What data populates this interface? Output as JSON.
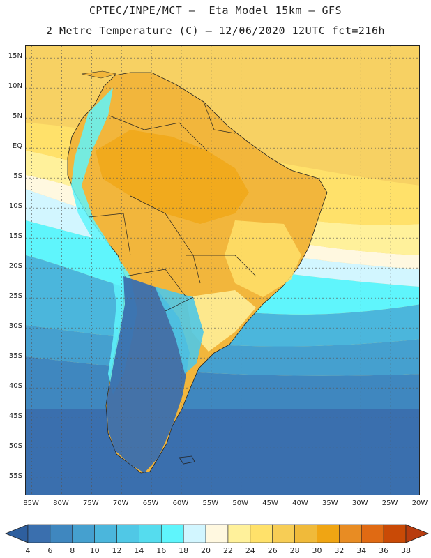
{
  "title_line1": "CPTEC/INPE/MCT –  Eta Model 15km – GFS",
  "title_line2": "2 Metre Temperature (C) – 12/06/2020 12UTC fct=216h",
  "map": {
    "region": "South America",
    "lon_range": [
      -86,
      -20
    ],
    "lat_range": [
      -58,
      17
    ],
    "lat_ticks": [
      "15N",
      "10N",
      "5N",
      "EQ",
      "5S",
      "10S",
      "15S",
      "20S",
      "25S",
      "30S",
      "35S",
      "40S",
      "45S",
      "50S",
      "55S"
    ],
    "lat_values": [
      15,
      10,
      5,
      0,
      -5,
      -10,
      -15,
      -20,
      -25,
      -30,
      -35,
      -40,
      -45,
      -50,
      -55
    ],
    "lon_ticks": [
      "85W",
      "80W",
      "75W",
      "70W",
      "65W",
      "60W",
      "55W",
      "50W",
      "45W",
      "40W",
      "35W",
      "30W",
      "25W",
      "20W"
    ],
    "lon_values": [
      -85,
      -80,
      -75,
      -70,
      -65,
      -60,
      -55,
      -50,
      -45,
      -40,
      -35,
      -30,
      -25,
      -20
    ]
  },
  "colorbar": {
    "levels": [
      "4",
      "6",
      "8",
      "10",
      "12",
      "14",
      "16",
      "18",
      "20",
      "22",
      "24",
      "26",
      "28",
      "30",
      "32",
      "34",
      "36",
      "38"
    ],
    "colors": [
      "#3a6fae",
      "#3f87bf",
      "#45a0cf",
      "#4bb6dc",
      "#50c8e6",
      "#55dcee",
      "#5ff5fc",
      "#d2f6ff",
      "#fff8e0",
      "#fff19b",
      "#ffe16a",
      "#f7cd55",
      "#f0ba3a",
      "#f0a513",
      "#e88c23",
      "#e06a13",
      "#c94a06"
    ],
    "low_color": "#2e5f9e",
    "high_color": "#b83c0e"
  }
}
